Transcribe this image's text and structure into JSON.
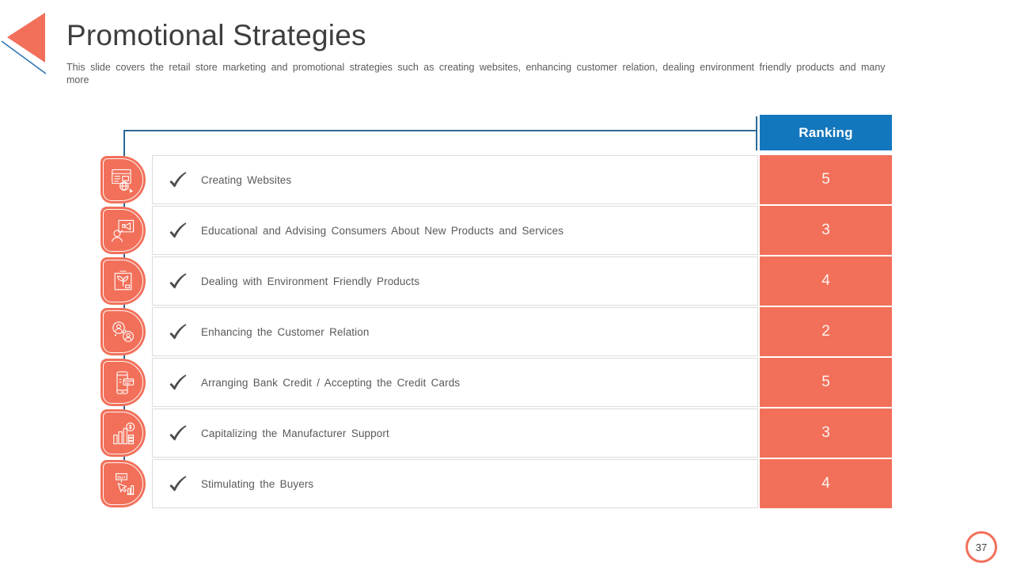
{
  "slide": {
    "title": "Promotional Strategies",
    "subtitle": "This slide covers the retail store marketing and promotional strategies such as creating websites, enhancing customer relation, dealing environment friendly products and many more",
    "page_number": "37"
  },
  "table": {
    "header": "Ranking",
    "rows": [
      {
        "label": "Creating Websites",
        "ranking": "5",
        "icon": "website-icon"
      },
      {
        "label": "Educational and Advising Consumers About New Products and Services",
        "ranking": "3",
        "icon": "advising-icon"
      },
      {
        "label": "Dealing with Environment Friendly Products",
        "ranking": "4",
        "icon": "eco-product-icon"
      },
      {
        "label": "Enhancing the Customer Relation",
        "ranking": "2",
        "icon": "customer-relation-icon"
      },
      {
        "label": "Arranging Bank Credit / Accepting the Credit Cards",
        "ranking": "5",
        "icon": "payment-icon"
      },
      {
        "label": "Capitalizing the Manufacturer Support",
        "ranking": "3",
        "icon": "manufacturer-support-icon"
      },
      {
        "label": "Stimulating the Buyers",
        "ranking": "4",
        "icon": "buy-icon"
      }
    ]
  },
  "colors": {
    "coral": "#F2705A",
    "header_blue": "#1377BD",
    "connector_blue": "#2C6A96",
    "title_text": "#3E3E3E",
    "body_text": "#595959",
    "row_border": "#DBDBDB"
  }
}
